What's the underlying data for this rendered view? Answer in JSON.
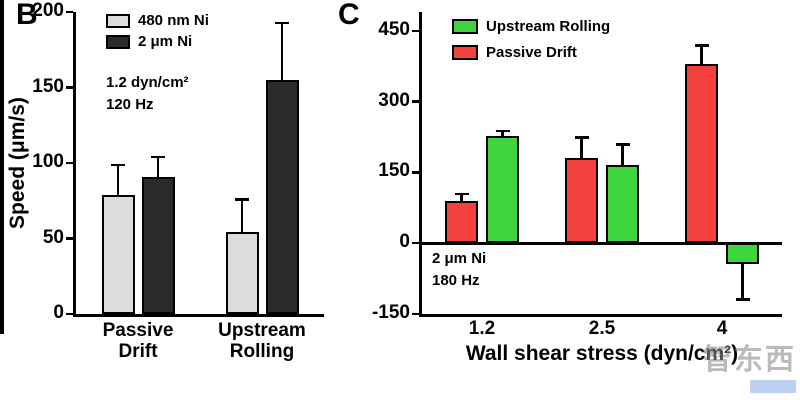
{
  "watermark": {
    "text": "智东西"
  },
  "chart_data": [
    {
      "panel_label": "B",
      "type": "bar",
      "ylabel": "Speed (μm/s)",
      "ylim": [
        0,
        200
      ],
      "yticks": [
        0,
        50,
        100,
        150,
        200
      ],
      "grid": false,
      "legend_position": "top-left-inside",
      "categories": [
        "Passive Drift",
        "Upstream Rolling"
      ],
      "series": [
        {
          "name": "480 nm Ni",
          "color": "#dcdcdc",
          "values": [
            79,
            54
          ],
          "errors": [
            20,
            22
          ]
        },
        {
          "name": "2 μm Ni",
          "color": "#2b2b2b",
          "values": [
            91,
            155
          ],
          "errors": [
            13,
            38
          ]
        }
      ],
      "annotations": [
        "1.2 dyn/cm²",
        "120 Hz"
      ]
    },
    {
      "panel_label": "C",
      "type": "bar",
      "xlabel": "Wall shear stress (dyn/cm²)",
      "ylim": [
        -150,
        490
      ],
      "yticks": [
        -150,
        0,
        150,
        300,
        450
      ],
      "grid": false,
      "legend_position": "top-left-inside",
      "legend": [
        "Upstream Rolling",
        "Passive Drift"
      ],
      "categories": [
        "1.2",
        "2.5",
        "4"
      ],
      "series": [
        {
          "name": "Passive Drift",
          "color": "#f5413e",
          "values": [
            90,
            180,
            380
          ],
          "errors": [
            15,
            45,
            40
          ]
        },
        {
          "name": "Upstream Rolling",
          "color": "#3ed43e",
          "values": [
            228,
            165,
            -45
          ],
          "errors": [
            10,
            45,
            75
          ]
        }
      ],
      "annotations": [
        "2 μm Ni",
        "180 Hz"
      ]
    }
  ]
}
